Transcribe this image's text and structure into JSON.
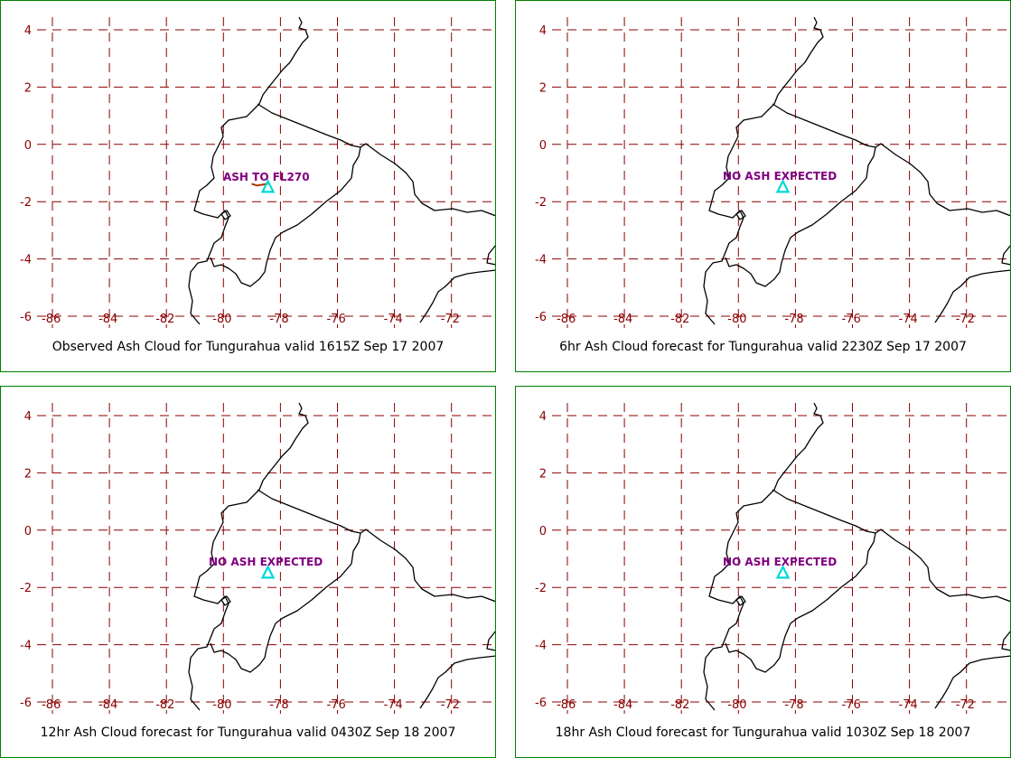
{
  "map": {
    "lon_ticks": [
      "-86",
      "-84",
      "-82",
      "-80",
      "-78",
      "-76",
      "-74",
      "-72"
    ],
    "lat_ticks": [
      "4",
      "2",
      "0",
      "-2",
      "-4",
      "-6"
    ],
    "volcano_name": "Tungurahua",
    "volcano_icon": "triangle-icon",
    "colors": {
      "grid": "#8b0000",
      "coast": "#000000",
      "label": "#800080",
      "volcano": "#00d8d8",
      "border": "#008000",
      "ash": "#b03000"
    }
  },
  "panels": [
    {
      "label": "ASH TO FL270",
      "caption": "Observed Ash Cloud for Tungurahua valid 1615Z Sep 17 2007",
      "ash_shown": true
    },
    {
      "label": "NO ASH EXPECTED",
      "caption": "6hr Ash Cloud forecast for Tungurahua valid 2230Z Sep 17 2007",
      "ash_shown": false
    },
    {
      "label": "NO ASH EXPECTED",
      "caption": "12hr Ash Cloud forecast for Tungurahua valid 0430Z Sep 18 2007",
      "ash_shown": false
    },
    {
      "label": "NO ASH EXPECTED",
      "caption": "18hr Ash Cloud forecast for Tungurahua valid 1030Z Sep 18 2007",
      "ash_shown": false
    }
  ]
}
